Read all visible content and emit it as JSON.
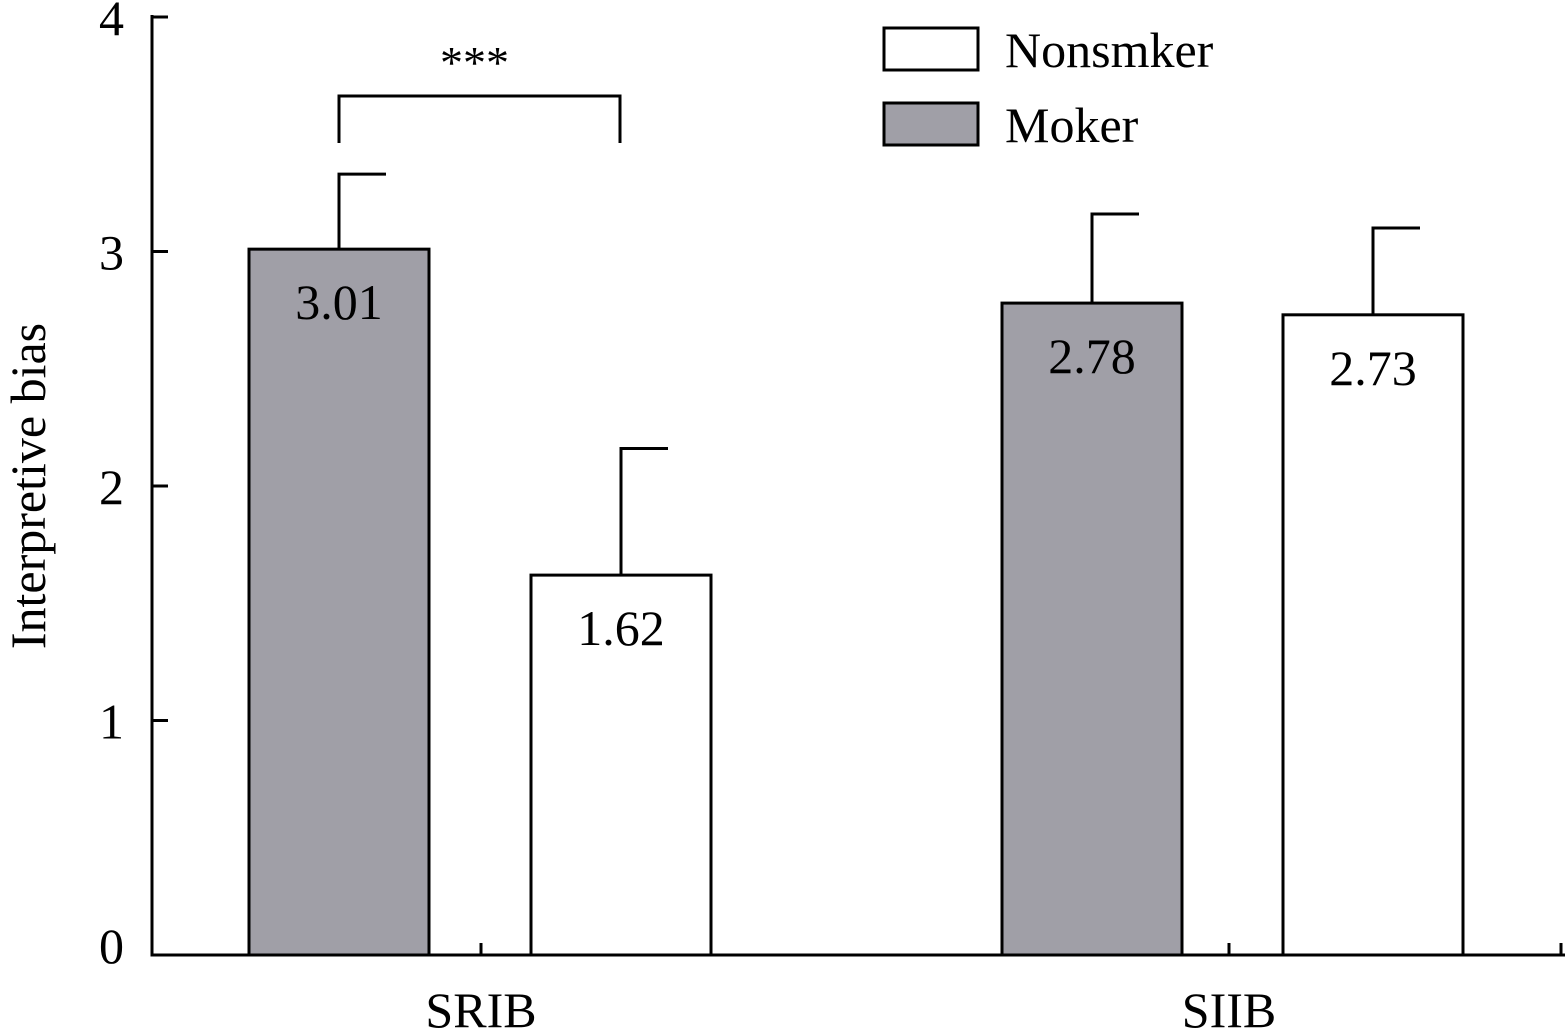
{
  "chart_data": {
    "type": "bar",
    "title": "",
    "xlabel": "",
    "ylabel": "Interpretive bias",
    "ylim": [
      0,
      4
    ],
    "yticks": [
      "0",
      "1",
      "2",
      "3",
      "4"
    ],
    "categories": [
      "SRIB",
      "SIIB"
    ],
    "series": [
      {
        "name": "Moker",
        "color": "#a09fa7",
        "values": [
          3.01,
          2.78
        ],
        "errors": [
          0.32,
          0.38
        ],
        "labels": [
          "3.01",
          "2.78"
        ]
      },
      {
        "name": "Nonsmker",
        "color": "#ffffff",
        "values": [
          1.62,
          2.73
        ],
        "errors": [
          0.54,
          0.37
        ],
        "labels": [
          "1.62",
          "2.73"
        ]
      }
    ],
    "legend": {
      "position": "top-center",
      "order": [
        "Nonsmker",
        "Moker"
      ]
    },
    "annotations": [
      {
        "text": "***",
        "type": "significance-bracket",
        "category": "SRIB"
      }
    ],
    "grid": false
  }
}
